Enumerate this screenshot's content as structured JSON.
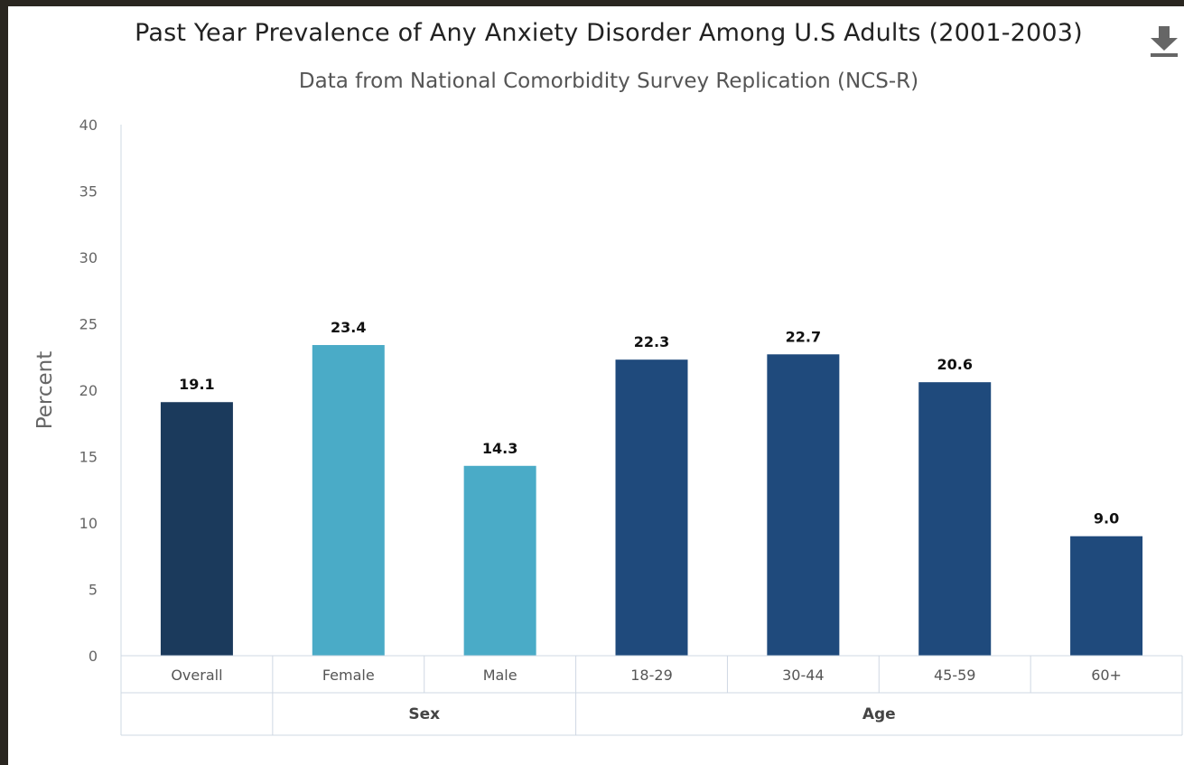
{
  "chart_data": {
    "type": "bar",
    "title": "Past Year Prevalence of Any Anxiety Disorder Among U.S Adults (2001-2003)",
    "subtitle": "Data from National Comorbidity Survey Replication (NCS-R)",
    "ylabel": "Percent",
    "xlabel": "",
    "ylim": [
      0,
      40
    ],
    "yticks": [
      0,
      5,
      10,
      15,
      20,
      25,
      30,
      35,
      40
    ],
    "grid": false,
    "categories": [
      "Overall",
      "Female",
      "Male",
      "18-29",
      "30-44",
      "45-59",
      "60+"
    ],
    "values": [
      19.1,
      23.4,
      14.3,
      22.3,
      22.7,
      20.6,
      9.0
    ],
    "value_labels": [
      "19.1",
      "23.4",
      "14.3",
      "22.3",
      "22.7",
      "20.6",
      "9.0"
    ],
    "groups": [
      {
        "name": "",
        "categories": [
          "Overall"
        ]
      },
      {
        "name": "Sex",
        "categories": [
          "Female",
          "Male"
        ]
      },
      {
        "name": "Age",
        "categories": [
          "18-29",
          "30-44",
          "45-59",
          "60+"
        ]
      }
    ],
    "colors": [
      "#1b3a5c",
      "#4aabc7",
      "#4aabc7",
      "#1f4a7c",
      "#1f4a7c",
      "#1f4a7c",
      "#1f4a7c"
    ]
  },
  "toolbar": {
    "download_icon": "download-icon"
  }
}
